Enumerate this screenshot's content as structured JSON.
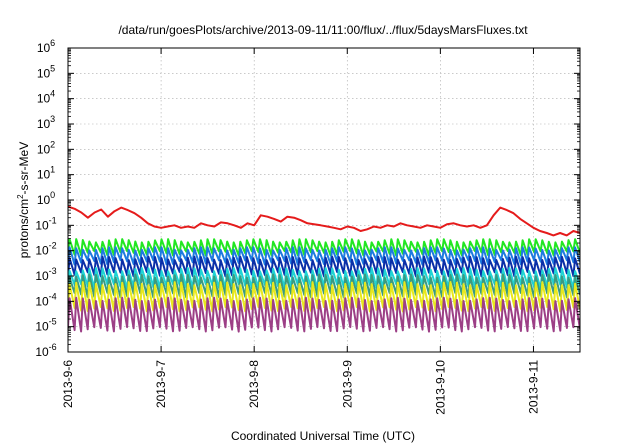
{
  "chart_data": {
    "type": "line",
    "title": "/data/run/goesPlots/archive/2013-09-11/11:00/flux/../flux/5daysMarsFluxes.txt",
    "xlabel": "Coordinated Universal Time (UTC)",
    "ylabel_parts": [
      "protons/cm",
      "2",
      "-s-sr-MeV"
    ],
    "x_ticks": [
      "2013-9-6",
      "2013-9-7",
      "2013-9-8",
      "2013-9-9",
      "2013-9-10",
      "2013-9-11"
    ],
    "x_range_days": [
      0,
      5.5
    ],
    "y_scale": "log",
    "y_range_exp": [
      -6,
      6
    ],
    "y_tick_base": "10",
    "y_tick_exps": [
      "-6",
      "-5",
      "-4",
      "-3",
      "-2",
      "-1",
      "0",
      "1",
      "2",
      "3",
      "4",
      "5",
      "6"
    ],
    "grid": true,
    "legend": "none",
    "series": [
      {
        "color": "#e51b1b",
        "sawtooth": false,
        "values": [
          0.55,
          0.45,
          0.32,
          0.2,
          0.32,
          0.42,
          0.22,
          0.36,
          0.5,
          0.4,
          0.3,
          0.2,
          0.12,
          0.09,
          0.08,
          0.09,
          0.1,
          0.08,
          0.09,
          0.08,
          0.12,
          0.1,
          0.09,
          0.13,
          0.12,
          0.1,
          0.08,
          0.12,
          0.1,
          0.25,
          0.22,
          0.18,
          0.14,
          0.22,
          0.2,
          0.16,
          0.12,
          0.11,
          0.1,
          0.09,
          0.08,
          0.07,
          0.09,
          0.08,
          0.06,
          0.07,
          0.09,
          0.08,
          0.1,
          0.09,
          0.12,
          0.1,
          0.09,
          0.08,
          0.1,
          0.09,
          0.08,
          0.11,
          0.12,
          0.1,
          0.09,
          0.1,
          0.08,
          0.1,
          0.25,
          0.5,
          0.4,
          0.3,
          0.18,
          0.12,
          0.08,
          0.06,
          0.05,
          0.04,
          0.05,
          0.04,
          0.06,
          0.05
        ]
      },
      {
        "color": "#22e622",
        "sawtooth": true,
        "hi": 0.025,
        "lo": 0.008
      },
      {
        "color": "#1e7be0",
        "sawtooth": true,
        "hi": 0.012,
        "lo": 0.0035
      },
      {
        "color": "#0b2fa8",
        "sawtooth": true,
        "hi": 0.005,
        "lo": 0.0012
      },
      {
        "color": "#1fd4d4",
        "sawtooth": true,
        "hi": 0.0018,
        "lo": 0.0004
      },
      {
        "color": "#3a9a80",
        "sawtooth": true,
        "hi": 0.001,
        "lo": 0.00018
      },
      {
        "color": "#e8e81c",
        "sawtooth": true,
        "hi": 0.0005,
        "lo": 5e-05
      },
      {
        "color": "#9c3f86",
        "sawtooth": true,
        "hi": 0.00012,
        "lo": 8e-06
      }
    ]
  }
}
